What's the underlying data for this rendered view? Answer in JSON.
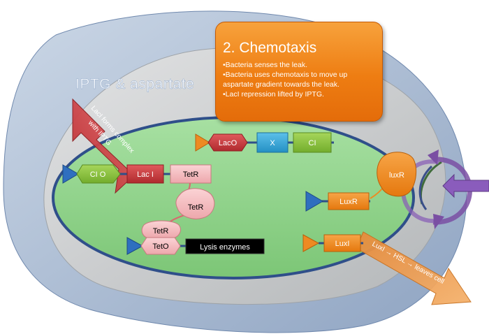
{
  "title": "IPTG & aspartate",
  "callout": {
    "heading": "2. Chemotaxis",
    "bullets": [
      "•Bacteria senses the leak.",
      "•Bacteria uses chemotaxis to move up",
      "aspartate gradient towards the leak.",
      "•LacI repression lifted by IPTG."
    ]
  },
  "arrows": {
    "laci_complex_line1": "LacI forms complex",
    "laci_complex_line2": "with IPTG",
    "luxi_path": "LuxI → HSL → leaves cell"
  },
  "genes": {
    "lac_o": "LacO",
    "x": "X",
    "ci": "CI",
    "ci_o": "CI O",
    "lac_i": "Lac I",
    "tet_r_gene": "TetR",
    "tet_r_protein_1": "TetR",
    "tet_r_protein_2": "TetR",
    "tet_o": "TetO",
    "lysis": "Lysis enzymes",
    "lux_r_gene": "LuxR",
    "lux_r_protein": "luxR",
    "lux_i": "LuxI"
  },
  "colors": {
    "outer_cell": "#a9b9d1",
    "inner_region": "#c4c6c7",
    "bacterium": "#8fd48a",
    "bacterium_border": "#2f4f8a",
    "callout": "#ee7d12",
    "lac_i": "#c0373b",
    "gene_green": "#8cc43d",
    "gene_blue": "#30a6d8",
    "tet_pink": "#f3bcc0",
    "lux_orange": "#f08a1c",
    "promoter_blue": "#2f6fbf",
    "promoter_orange": "#ee8a22",
    "flagella_purple": "#7a4fa3"
  }
}
